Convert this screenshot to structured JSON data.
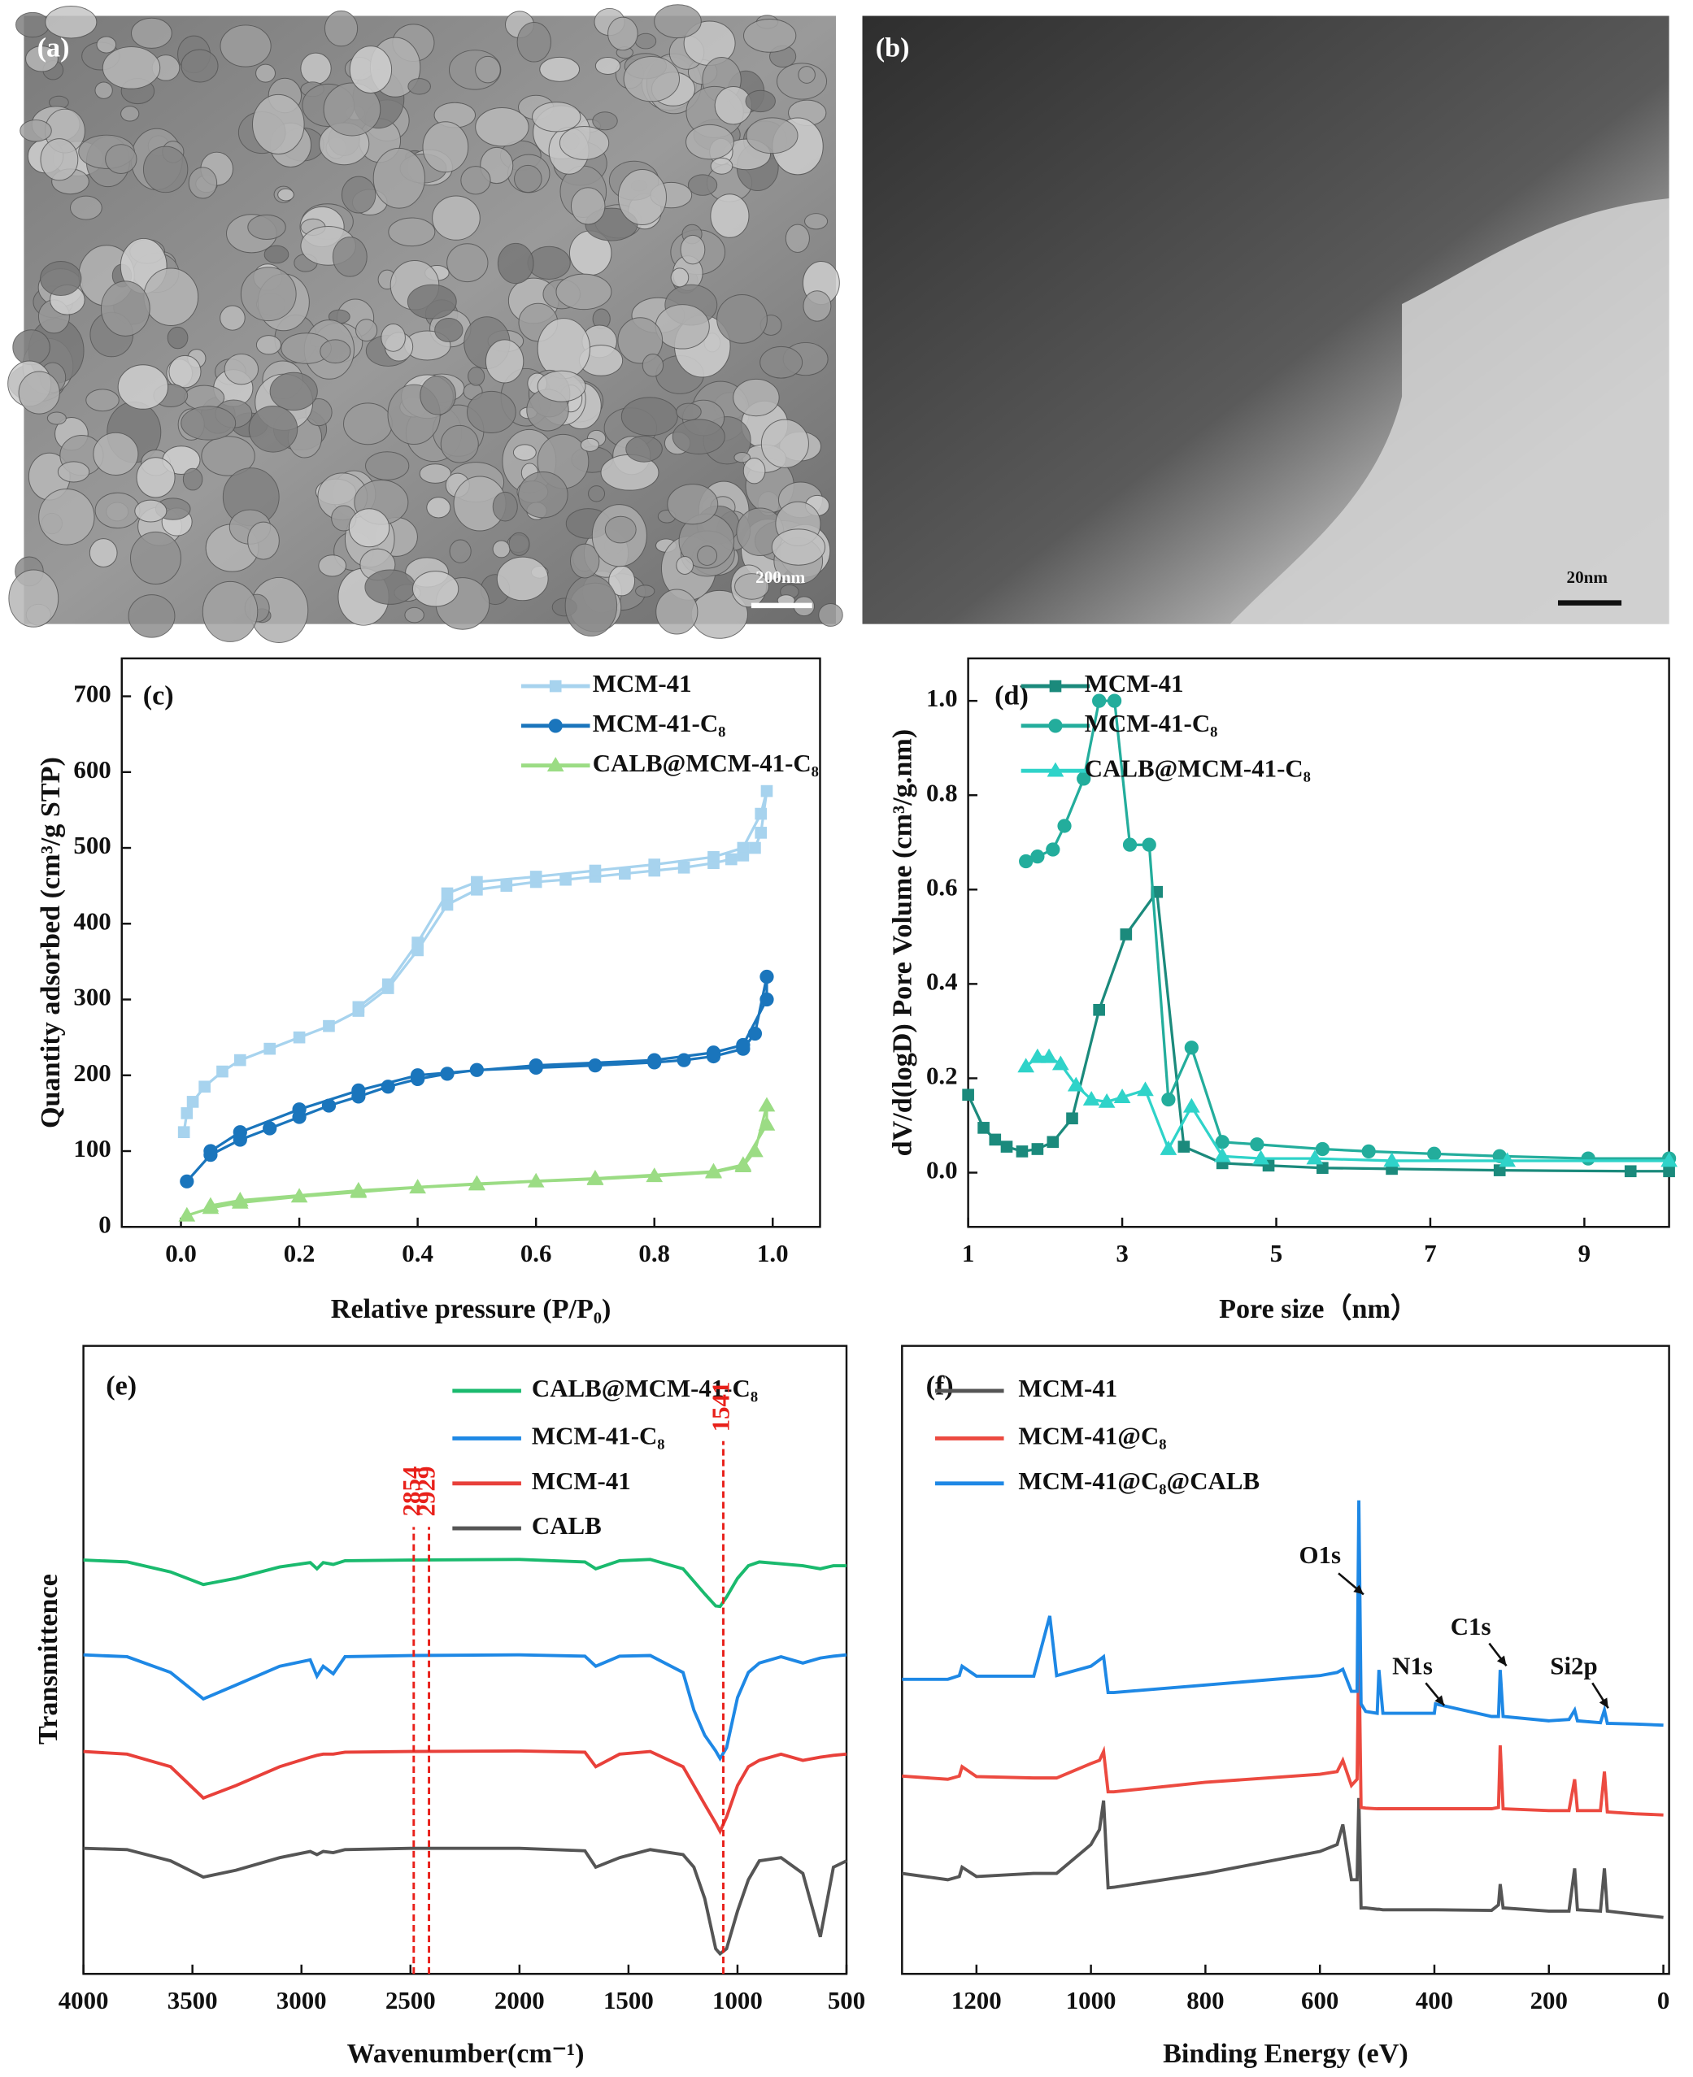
{
  "images": [
    {
      "label": "(a)",
      "scale_bar": "200nm"
    },
    {
      "label": "(b)",
      "scale_bar": "20nm"
    }
  ],
  "chart_data": [
    {
      "type": "line",
      "panel_label": "(c)",
      "x_label": "Relative pressure (P/P₀)",
      "y_label": "Quantity adsorbed (cm³/g STP)",
      "xlim": [
        -0.1,
        1.08
      ],
      "xticks": [
        {
          "value": 0,
          "label": "0.0"
        },
        0.2,
        0.4,
        0.6,
        0.8,
        {
          "value": 1,
          "label": "1.0"
        }
      ],
      "ylim": [
        0,
        750
      ],
      "yticks": [
        0,
        100,
        200,
        300,
        400,
        500,
        600,
        700
      ],
      "series": [
        {
          "name": "MCM-41",
          "color": "#a7d3ee",
          "marker": "square",
          "x": [
            0.005,
            0.01,
            0.02,
            0.04,
            0.07,
            0.1,
            0.15,
            0.2,
            0.25,
            0.3,
            0.35,
            0.4,
            0.45,
            0.5,
            0.55,
            0.6,
            0.65,
            0.7,
            0.75,
            0.8,
            0.85,
            0.9,
            0.93,
            0.95,
            0.97,
            0.98,
            0.99,
            0.98,
            0.95,
            0.9,
            0.8,
            0.7,
            0.6,
            0.5,
            0.45,
            0.4,
            0.35,
            0.3
          ],
          "values": [
            125,
            150,
            165,
            185,
            205,
            220,
            235,
            250,
            265,
            285,
            315,
            365,
            425,
            445,
            450,
            455,
            458,
            462,
            466,
            470,
            474,
            480,
            485,
            490,
            500,
            520,
            575,
            545,
            500,
            488,
            478,
            470,
            462,
            455,
            440,
            375,
            320,
            290
          ]
        },
        {
          "name": "MCM-41-C₈",
          "color": "#1a75bc",
          "marker": "circle",
          "x": [
            0.01,
            0.05,
            0.1,
            0.15,
            0.2,
            0.25,
            0.3,
            0.35,
            0.4,
            0.45,
            0.5,
            0.6,
            0.7,
            0.8,
            0.85,
            0.9,
            0.95,
            0.97,
            0.99,
            0.99,
            0.95,
            0.9,
            0.8,
            0.6,
            0.4,
            0.3,
            0.2,
            0.1,
            0.05
          ],
          "values": [
            60,
            95,
            115,
            130,
            145,
            160,
            172,
            185,
            195,
            202,
            207,
            210,
            213,
            217,
            220,
            225,
            235,
            255,
            330,
            300,
            240,
            230,
            220,
            213,
            200,
            180,
            155,
            125,
            100
          ]
        },
        {
          "name": "CALB@MCM-41-C₈",
          "color": "#9bdc84",
          "marker": "triangle",
          "x": [
            0.01,
            0.05,
            0.1,
            0.2,
            0.3,
            0.4,
            0.5,
            0.6,
            0.7,
            0.8,
            0.9,
            0.95,
            0.97,
            0.99,
            0.99,
            0.95,
            0.9,
            0.7,
            0.5,
            0.3,
            0.1,
            0.05
          ],
          "values": [
            15,
            25,
            32,
            40,
            46,
            52,
            56,
            60,
            63,
            67,
            72,
            80,
            100,
            160,
            135,
            82,
            73,
            64,
            57,
            48,
            35,
            28
          ]
        }
      ]
    },
    {
      "type": "line",
      "panel_label": "(d)",
      "x_label": "Pore size（nm）",
      "y_label": "dV/d(logD) Pore Volume (cm³/g.nm)",
      "xlim": [
        1,
        10.1
      ],
      "xticks": [
        1,
        3,
        5,
        7,
        9
      ],
      "ylim": [
        -0.115,
        1.09
      ],
      "yticks": [
        {
          "value": 0,
          "label": "0.0"
        },
        0.2,
        0.4,
        0.6,
        0.8,
        {
          "value": 1,
          "label": "1.0"
        }
      ],
      "series": [
        {
          "name": "MCM-41",
          "color": "#1b8a7c",
          "marker": "square",
          "x": [
            1,
            1.2,
            1.35,
            1.5,
            1.7,
            1.9,
            2.1,
            2.35,
            2.7,
            3.05,
            3.45,
            3.8,
            4.3,
            4.9,
            5.6,
            6.5,
            7.9,
            9.6,
            10.1
          ],
          "values": [
            0.165,
            0.095,
            0.07,
            0.055,
            0.045,
            0.05,
            0.065,
            0.115,
            0.345,
            0.505,
            0.595,
            0.055,
            0.02,
            0.015,
            0.01,
            0.008,
            0.005,
            0.003,
            0.003
          ]
        },
        {
          "name": "MCM-41-C₈",
          "color": "#23ad9c",
          "marker": "circle",
          "x": [
            1.75,
            1.9,
            2.1,
            2.25,
            2.5,
            2.7,
            2.9,
            3.1,
            3.35,
            3.6,
            3.9,
            4.3,
            4.75,
            5.6,
            6.2,
            7.05,
            7.9,
            9.05,
            10.1
          ],
          "values": [
            0.66,
            0.67,
            0.685,
            0.735,
            0.835,
            1.0,
            1.0,
            0.695,
            0.695,
            0.155,
            0.265,
            0.065,
            0.06,
            0.05,
            0.045,
            0.04,
            0.035,
            0.03,
            0.03
          ]
        },
        {
          "name": "CALB@MCM-41-C₈",
          "color": "#2fd3c9",
          "marker": "triangle",
          "x": [
            1.75,
            1.9,
            2.05,
            2.2,
            2.4,
            2.6,
            2.8,
            3.0,
            3.3,
            3.6,
            3.9,
            4.3,
            4.8,
            5.5,
            6.5,
            8,
            10.1
          ],
          "values": [
            0.225,
            0.245,
            0.245,
            0.23,
            0.185,
            0.155,
            0.15,
            0.16,
            0.175,
            0.05,
            0.14,
            0.035,
            0.03,
            0.03,
            0.025,
            0.025,
            0.025
          ]
        }
      ]
    },
    {
      "type": "spectrum",
      "panel_label": "(e)",
      "x_label": "Wavenumber(cm⁻¹)",
      "y_label": "Transmittence",
      "xlim": [
        4000,
        500
      ],
      "xticks": [
        4000,
        3500,
        3000,
        2500,
        2000,
        1500,
        1000,
        500
      ],
      "ylim": [
        0,
        100
      ],
      "x": [
        4000,
        3800,
        3600,
        3450,
        3300,
        3100,
        2960,
        2929,
        2900,
        2854,
        2800,
        2500,
        2000,
        1700,
        1650,
        1541,
        1400,
        1250,
        1200,
        1150,
        1100,
        1080,
        1050,
        1000,
        950,
        900,
        800,
        700,
        620,
        560,
        500
      ],
      "series": [
        {
          "name": "CALB@MCM-41-C₈",
          "color": "#1aba6e",
          "values": [
            65.9,
            65.6,
            64,
            62,
            63,
            64.8,
            65.5,
            64.5,
            65.5,
            65.2,
            65.8,
            65.9,
            66,
            65.6,
            64.5,
            65.8,
            66,
            64.5,
            62.5,
            60.5,
            58.6,
            58.5,
            60,
            63,
            65,
            65.6,
            65.3,
            65,
            64.5,
            65,
            65
          ]
        },
        {
          "name": "MCM-41-C₈",
          "color": "#1e88e5",
          "values": [
            50.8,
            50.5,
            48,
            43.8,
            46,
            49,
            50,
            47.4,
            49,
            47.8,
            50.5,
            50.7,
            50.8,
            50.6,
            49,
            50.6,
            50.7,
            48,
            42,
            38,
            35.5,
            34.3,
            36,
            44,
            48,
            49.5,
            50.5,
            49.5,
            50.3,
            50.6,
            50.8
          ]
        },
        {
          "name": "MCM-41",
          "color": "#e8403a",
          "values": [
            35.4,
            35,
            33,
            28,
            30,
            33,
            34.5,
            34.8,
            35,
            35,
            35.3,
            35.4,
            35.5,
            35.3,
            33,
            35,
            35.4,
            33,
            30,
            27,
            24,
            22.7,
            25,
            30,
            33,
            34,
            35,
            34,
            34.5,
            34.8,
            35
          ]
        },
        {
          "name": "CALB",
          "color": "#555555",
          "values": [
            20,
            19.8,
            18,
            15.4,
            16.5,
            18.5,
            19.5,
            19,
            19.5,
            19.3,
            19.8,
            20,
            20,
            19.6,
            17,
            18.5,
            19.8,
            19,
            17,
            12,
            4,
            3.2,
            4,
            10,
            15,
            18,
            18.5,
            16,
            5.9,
            17,
            18
          ]
        }
      ],
      "annotations": [
        {
          "x": 2485,
          "label": "2854",
          "color": "#e8201a"
        },
        {
          "x": 2415,
          "label": "2929",
          "color": "#e8201a"
        },
        {
          "x": 1065,
          "label": "1541",
          "color": "#e8201a"
        }
      ]
    },
    {
      "type": "spectrum",
      "panel_label": "(f)",
      "x_label": "Binding Energy (eV)",
      "xlim": [
        1330,
        -10
      ],
      "xticks": [
        1200,
        1000,
        800,
        600,
        400,
        200,
        0
      ],
      "ylim": [
        0,
        100
      ],
      "x": [
        1330,
        1250,
        1230,
        1225,
        1200,
        1100,
        1072,
        1060,
        1000,
        985,
        978,
        970,
        960,
        800,
        600,
        570,
        560,
        545,
        535,
        532,
        528,
        520,
        500,
        497,
        490,
        400,
        398,
        300,
        288,
        285,
        280,
        200,
        165,
        155,
        150,
        110,
        103,
        98,
        50,
        0
      ],
      "series": [
        {
          "name": "MCM-41",
          "color": "#555555",
          "values": [
            16,
            15,
            15.5,
            17,
            15.5,
            16,
            16,
            16,
            20.6,
            23,
            27.6,
            13.7,
            13.8,
            16,
            19.5,
            20.6,
            23.8,
            15,
            15,
            28,
            10.5,
            10.5,
            10.3,
            10.3,
            10.2,
            10.2,
            10.2,
            10.1,
            11,
            14.3,
            10.5,
            10,
            10,
            16.8,
            10.2,
            10,
            16.8,
            10,
            9.5,
            9
          ]
        },
        {
          "name": "MCM-41@C₈",
          "color": "#ec4a40",
          "values": [
            31.5,
            31,
            31.5,
            33,
            31.4,
            31.2,
            31.2,
            31.2,
            33.5,
            34,
            35.4,
            29,
            29,
            30.5,
            31.8,
            32.2,
            34,
            30,
            31,
            53,
            26.5,
            26.4,
            26.3,
            26.3,
            26.3,
            26.3,
            26.3,
            26.3,
            26.5,
            36.4,
            26.3,
            26,
            26,
            31,
            26,
            26,
            32.2,
            25.8,
            25.5,
            25.3
          ]
        },
        {
          "name": "MCM-41@C₈@CALB",
          "color": "#1e88e5",
          "values": [
            46.9,
            46.9,
            47.5,
            49,
            47.4,
            47.4,
            57,
            47.5,
            49,
            50,
            50.5,
            44.8,
            44.8,
            46,
            47.5,
            48,
            48.5,
            45,
            45,
            75.4,
            43,
            41.8,
            41.5,
            48.4,
            41.5,
            41.5,
            43,
            41,
            41,
            48.4,
            41,
            40.3,
            40.5,
            42,
            40.3,
            40,
            42,
            39.9,
            39.8,
            39.6
          ]
        }
      ],
      "annotations": [
        {
          "x": 532,
          "label": "O1s"
        },
        {
          "x": 400,
          "label": "N1s"
        },
        {
          "x": 285,
          "label": "C1s"
        },
        {
          "x": 103,
          "label": "Si2p"
        }
      ]
    }
  ]
}
